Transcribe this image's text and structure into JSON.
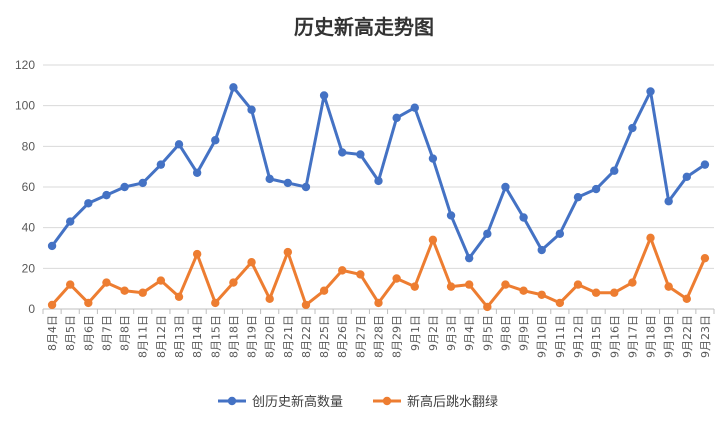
{
  "chart_data": {
    "type": "line",
    "title": "历史新高走势图",
    "xlabel": "",
    "ylabel": "",
    "ylim": [
      0,
      120
    ],
    "yticks": [
      0,
      20,
      40,
      60,
      80,
      100,
      120
    ],
    "grid": true,
    "legend_position": "bottom",
    "categories": [
      "8月4日",
      "8月5日",
      "8月6日",
      "8月7日",
      "8月8日",
      "8月11日",
      "8月12日",
      "8月13日",
      "8月14日",
      "8月15日",
      "8月18日",
      "8月19日",
      "8月20日",
      "8月21日",
      "8月22日",
      "8月25日",
      "8月26日",
      "8月27日",
      "8月28日",
      "8月29日",
      "9月1日",
      "9月2日",
      "9月3日",
      "9月4日",
      "9月5日",
      "9月8日",
      "9月9日",
      "9月10日",
      "9月11日",
      "9月12日",
      "9月15日",
      "9月16日",
      "9月17日",
      "9月18日",
      "9月19日",
      "9月22日",
      "9月23日"
    ],
    "series": [
      {
        "name": "创历史新高数量",
        "color": "#4472c4",
        "values": [
          31,
          43,
          52,
          56,
          60,
          62,
          71,
          81,
          67,
          83,
          109,
          98,
          64,
          62,
          60,
          105,
          77,
          76,
          63,
          94,
          99,
          74,
          46,
          25,
          37,
          60,
          45,
          29,
          37,
          55,
          59,
          68,
          89,
          107,
          53,
          65,
          71
        ]
      },
      {
        "name": "新高后跳水翻绿",
        "color": "#ed7d31",
        "values": [
          2,
          12,
          3,
          13,
          9,
          8,
          14,
          6,
          27,
          3,
          13,
          23,
          5,
          28,
          2,
          9,
          19,
          17,
          3,
          15,
          11,
          34,
          11,
          12,
          1,
          12,
          9,
          7,
          3,
          12,
          8,
          8,
          13,
          35,
          11,
          5,
          25
        ]
      }
    ]
  },
  "colors": {
    "gridline": "#d9d9d9",
    "axis": "#bfbfbf"
  }
}
